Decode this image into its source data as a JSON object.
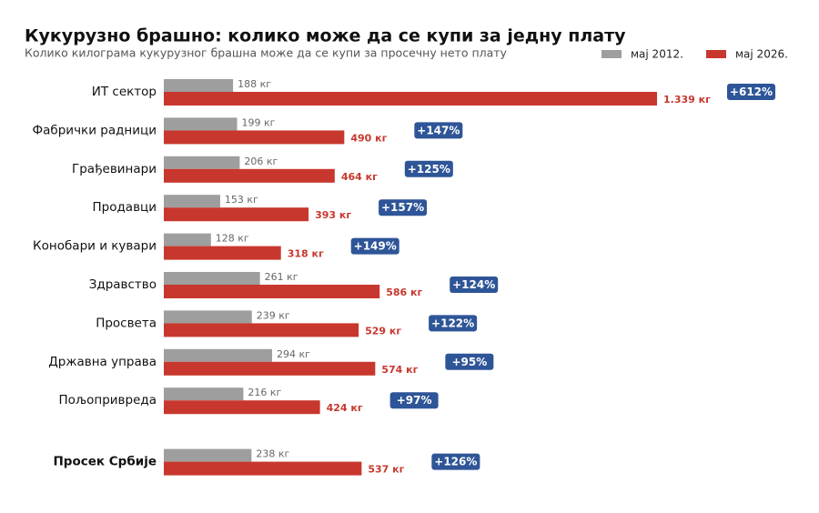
{
  "chart_data": {
    "type": "grouped-hbar",
    "title": "Кукурузно брашно: колико може да се купи за једну плату",
    "subtitle": "Колико килограма кукурузног брашна може да се купи за просечну нето плату",
    "categories": [
      "ИТ сектор",
      "Фабрички радници",
      "Грађевинари",
      "Продавци",
      "Конобари и кувари",
      "Здравство",
      "Просвета",
      "Државна управа",
      "Пољопривреда",
      "Просек Србије"
    ],
    "series": [
      {
        "name": "мај 2012.",
        "color": "#9e9e9e",
        "values": [
          188,
          199,
          206,
          153,
          128,
          261,
          239,
          294,
          216,
          238
        ],
        "value_labels": [
          "188 кг",
          "199 кг",
          "206 кг",
          "153 кг",
          "128 кг",
          "261 кг",
          "239 кг",
          "294 кг",
          "216 кг",
          "238 кг"
        ]
      },
      {
        "name": "мај 2026.",
        "color": "#c8372d",
        "values": [
          1339,
          490,
          464,
          393,
          318,
          586,
          529,
          574,
          424,
          537
        ],
        "value_labels": [
          "1.339 кг",
          "490 кг",
          "464 кг",
          "393 кг",
          "318 кг",
          "586 кг",
          "529 кг",
          "574 кг",
          "424 кг",
          "537 кг"
        ]
      }
    ],
    "change_labels": [
      "+612%",
      "+147%",
      "+125%",
      "+157%",
      "+149%",
      "+124%",
      "+122%",
      "+95%",
      "+97%",
      "+126%"
    ],
    "badge_color": "#2e5597"
  }
}
